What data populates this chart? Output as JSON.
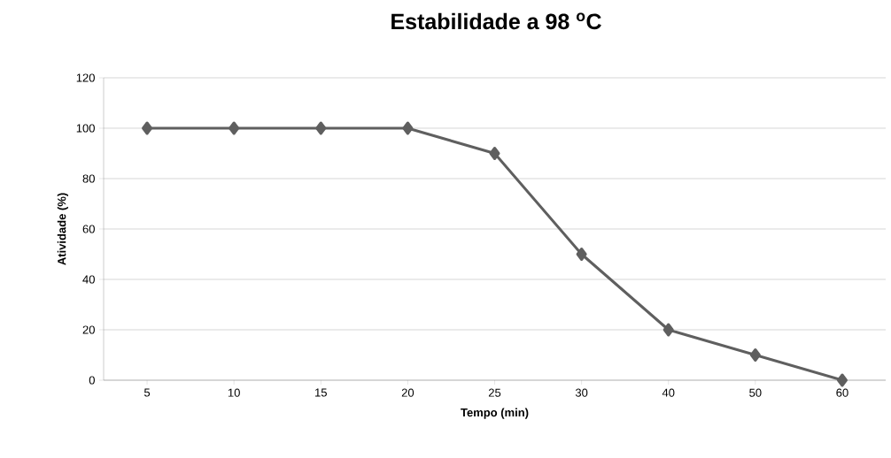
{
  "chart_data": {
    "type": "line",
    "title": "Estabilidade a 98 $^{o}$C",
    "xlabel": "Tempo (min)",
    "ylabel": "Atividade (%)",
    "categories": [
      "5",
      "10",
      "15",
      "20",
      "25",
      "30",
      "40",
      "50",
      "60"
    ],
    "series": [
      {
        "color": "#5f5f5f",
        "values": [
          100,
          100,
          100,
          100,
          90,
          50,
          20,
          10,
          0
        ]
      }
    ],
    "ylim": [
      0,
      120
    ],
    "yticks": [
      0,
      20,
      40,
      60,
      80,
      100,
      120
    ],
    "grid": "y",
    "marker": "diamond",
    "line_style": "solid"
  }
}
